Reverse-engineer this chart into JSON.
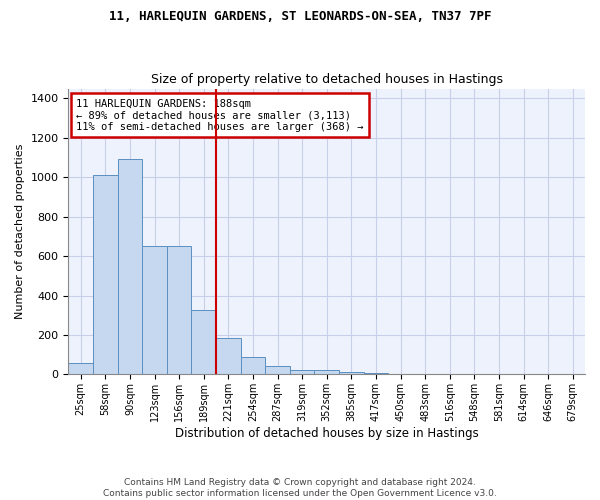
{
  "title": "11, HARLEQUIN GARDENS, ST LEONARDS-ON-SEA, TN37 7PF",
  "subtitle": "Size of property relative to detached houses in Hastings",
  "xlabel": "Distribution of detached houses by size in Hastings",
  "ylabel": "Number of detached properties",
  "footer_line1": "Contains HM Land Registry data © Crown copyright and database right 2024.",
  "footer_line2": "Contains public sector information licensed under the Open Government Licence v3.0.",
  "annotation_line1": "11 HARLEQUIN GARDENS: 188sqm",
  "annotation_line2": "← 89% of detached houses are smaller (3,113)",
  "annotation_line3": "11% of semi-detached houses are larger (368) →",
  "bar_color": "#c5d8f0",
  "bar_edge_color": "#5a8fc0",
  "background_color": "#eef2fc",
  "grid_color": "#c8cfe8",
  "vline_color": "#cc0000",
  "annotation_box_color": "#cc0000",
  "categories": [
    "25sqm",
    "58sqm",
    "90sqm",
    "123sqm",
    "156sqm",
    "189sqm",
    "221sqm",
    "254sqm",
    "287sqm",
    "319sqm",
    "352sqm",
    "385sqm",
    "417sqm",
    "450sqm",
    "483sqm",
    "516sqm",
    "548sqm",
    "581sqm",
    "614sqm",
    "646sqm",
    "679sqm"
  ],
  "values": [
    60,
    1010,
    1095,
    650,
    650,
    325,
    185,
    90,
    45,
    25,
    20,
    12,
    5,
    3,
    2,
    2,
    1,
    1,
    0,
    0,
    0
  ],
  "vline_index": 5,
  "ylim": [
    0,
    1450
  ],
  "yticks": [
    0,
    200,
    400,
    600,
    800,
    1000,
    1200,
    1400
  ]
}
